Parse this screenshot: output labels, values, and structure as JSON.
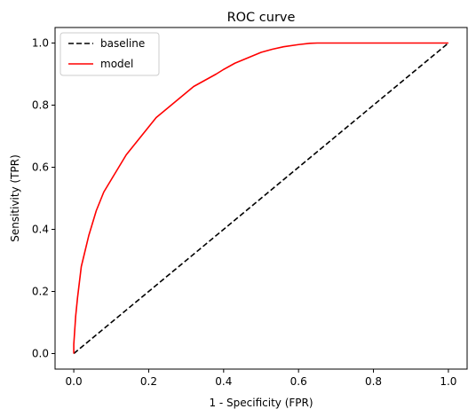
{
  "chart_data": {
    "type": "line",
    "title": "ROC curve",
    "xlabel": "1 - Specificity (FPR)",
    "ylabel": "Sensitivity (TPR)",
    "xlim": [
      -0.05,
      1.05
    ],
    "ylim": [
      -0.05,
      1.05
    ],
    "xticks": [
      "0.0",
      "0.2",
      "0.4",
      "0.6",
      "0.8",
      "1.0"
    ],
    "yticks": [
      "0.0",
      "0.2",
      "0.4",
      "0.6",
      "0.8",
      "1.0"
    ],
    "grid": false,
    "legend_position": "top-left",
    "series": [
      {
        "name": "baseline",
        "color": "#000000",
        "style": "dashed",
        "x": [
          0,
          1
        ],
        "y": [
          0,
          1
        ]
      },
      {
        "name": "model",
        "color": "#ff0000",
        "style": "solid",
        "x": [
          0,
          0.0,
          0.005,
          0.01,
          0.015,
          0.02,
          0.03,
          0.04,
          0.05,
          0.06,
          0.07,
          0.08,
          0.09,
          0.1,
          0.12,
          0.14,
          0.16,
          0.18,
          0.2,
          0.22,
          0.25,
          0.28,
          0.3,
          0.32,
          0.35,
          0.38,
          0.4,
          0.43,
          0.46,
          0.5,
          0.53,
          0.56,
          0.6,
          0.63,
          0.65,
          0.7,
          0.8,
          0.9,
          1.0
        ],
        "y": [
          0,
          0.03,
          0.12,
          0.18,
          0.23,
          0.28,
          0.33,
          0.38,
          0.42,
          0.46,
          0.49,
          0.52,
          0.54,
          0.56,
          0.6,
          0.64,
          0.67,
          0.7,
          0.73,
          0.76,
          0.79,
          0.82,
          0.84,
          0.86,
          0.88,
          0.9,
          0.915,
          0.935,
          0.95,
          0.97,
          0.98,
          0.988,
          0.995,
          0.999,
          1.0,
          1.0,
          1.0,
          1.0,
          1.0
        ]
      }
    ]
  }
}
